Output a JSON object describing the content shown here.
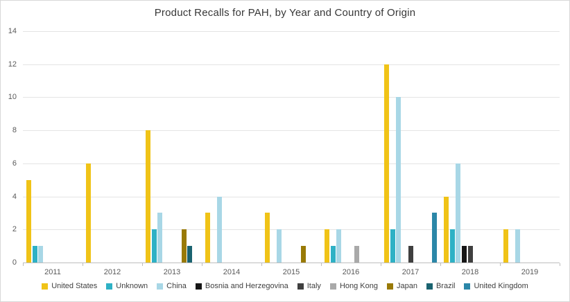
{
  "chart_data": {
    "type": "bar",
    "title": "Product Recalls for PAH, by Year and Country of Origin",
    "categories": [
      "2011",
      "2012",
      "2013",
      "2014",
      "2015",
      "2016",
      "2017",
      "2018",
      "2019"
    ],
    "series": [
      {
        "name": "United States",
        "color": "#F0C317",
        "values": [
          5,
          6,
          8,
          3,
          3,
          2,
          12,
          4,
          2
        ]
      },
      {
        "name": "Unknown",
        "color": "#2EB1C5",
        "values": [
          1,
          0,
          2,
          0,
          0,
          1,
          2,
          2,
          0
        ]
      },
      {
        "name": "China",
        "color": "#A8D7E6",
        "values": [
          1,
          0,
          3,
          4,
          2,
          2,
          10,
          6,
          2
        ]
      },
      {
        "name": "Bosnia and Herzegovina",
        "color": "#161616",
        "values": [
          0,
          0,
          0,
          0,
          0,
          0,
          0,
          1,
          0
        ]
      },
      {
        "name": "Italy",
        "color": "#3F3F3F",
        "values": [
          0,
          0,
          0,
          0,
          0,
          0,
          1,
          1,
          0
        ]
      },
      {
        "name": "Hong Kong",
        "color": "#A9A9A9",
        "values": [
          0,
          0,
          0,
          0,
          0,
          1,
          0,
          0,
          0
        ]
      },
      {
        "name": "Japan",
        "color": "#997A06",
        "values": [
          0,
          0,
          2,
          0,
          1,
          0,
          0,
          0,
          0
        ]
      },
      {
        "name": "Brazil",
        "color": "#1A6370",
        "values": [
          0,
          0,
          1,
          0,
          0,
          0,
          0,
          0,
          0
        ]
      },
      {
        "name": "United Kingdom",
        "color": "#2B87A8",
        "values": [
          0,
          0,
          0,
          0,
          0,
          0,
          3,
          0,
          0
        ]
      }
    ],
    "ylim": [
      0,
      14
    ],
    "yticks": [
      0,
      2,
      4,
      6,
      8,
      10,
      12,
      14
    ],
    "grid": true,
    "legend_position": "bottom",
    "xlabel": "",
    "ylabel": ""
  }
}
